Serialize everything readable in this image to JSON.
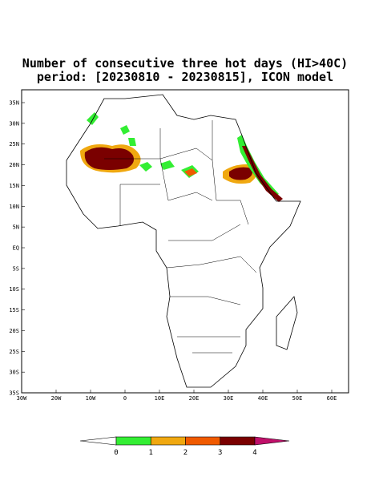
{
  "title": "Number of consecutive three hot days (HI>40C)",
  "subtitle": "period: [20230810 - 20230815], ICON model",
  "lat_labels": [
    "35N",
    "30N",
    "25N",
    "20N",
    "15N",
    "10N",
    "5N",
    "EQ",
    "5S",
    "10S",
    "15S",
    "20S",
    "25S",
    "30S",
    "35S"
  ],
  "lon_labels": [
    "30W",
    "20W",
    "10W",
    "0",
    "10E",
    "20E",
    "30E",
    "40E",
    "50E",
    "60E"
  ],
  "colorbar": {
    "levels": [
      0,
      1,
      2,
      3,
      4
    ],
    "colors": [
      "#ffffff",
      "#33ee33",
      "#f0a810",
      "#f05a00",
      "#7a0000",
      "#c0106a"
    ]
  }
}
